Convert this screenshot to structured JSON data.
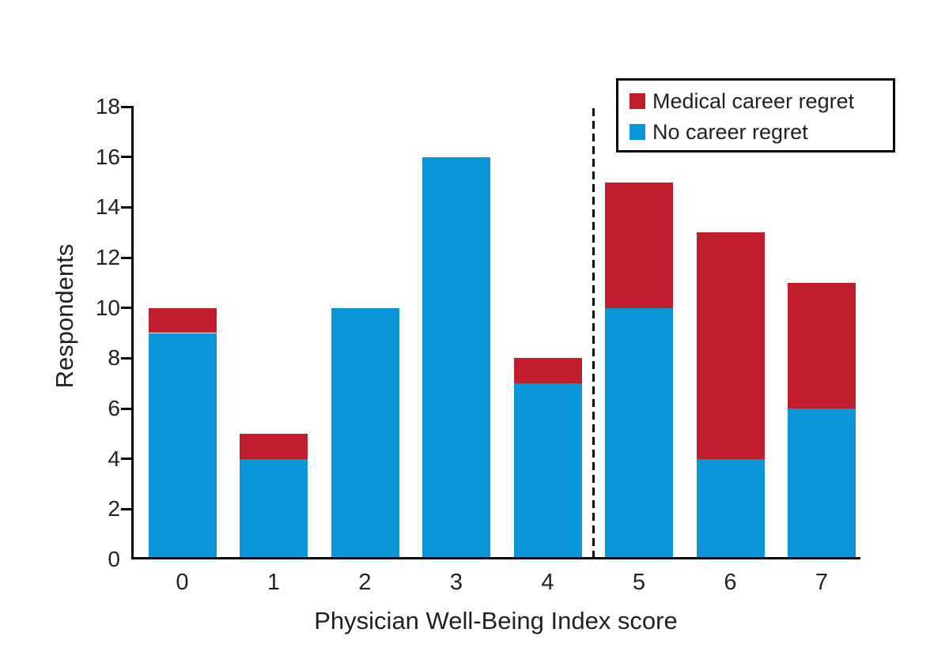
{
  "chart_data": {
    "type": "bar",
    "stacked": true,
    "title": "",
    "xlabel": "Physician Well-Being Index score",
    "ylabel": "Respondents",
    "categories": [
      "0",
      "1",
      "2",
      "3",
      "4",
      "5",
      "6",
      "7"
    ],
    "series": [
      {
        "name": "No career regret",
        "color": "#0a95d8",
        "values": [
          9,
          4,
          10,
          16,
          7,
          10,
          4,
          6
        ]
      },
      {
        "name": "Medical career regret",
        "color": "#be1e2d",
        "values": [
          1,
          1,
          0,
          0,
          1,
          5,
          9,
          5
        ]
      }
    ],
    "ylim": [
      0,
      18
    ],
    "ytick_step": 2,
    "ytick_labels": [
      "0",
      "2",
      "4",
      "6",
      "8",
      "10",
      "12",
      "14",
      "16",
      "18"
    ],
    "grid": false,
    "legend": {
      "position": "top-right",
      "boxed": true,
      "order": [
        "Medical career regret",
        "No career regret"
      ]
    },
    "annotations": [
      {
        "type": "vline",
        "x": 4.5,
        "style": "dashed",
        "color": "#000000"
      }
    ]
  }
}
